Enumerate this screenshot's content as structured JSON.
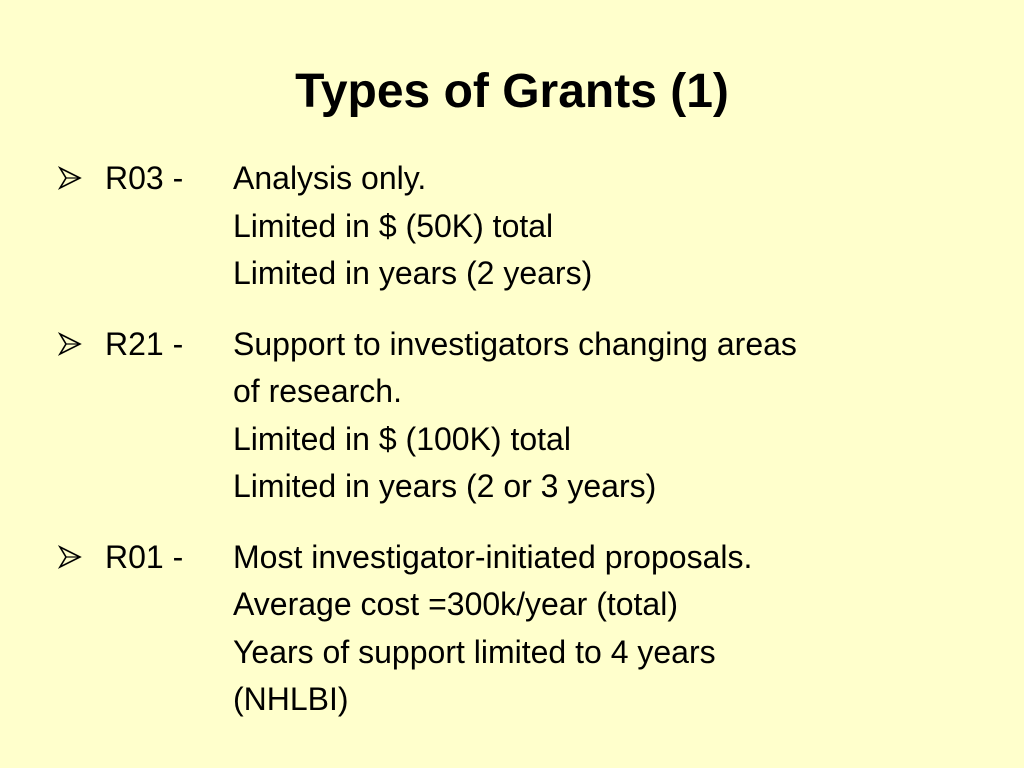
{
  "title": "Types of Grants (1)",
  "items": [
    {
      "code": "R03 -",
      "lines": [
        "Analysis only.",
        "Limited in $ (50K) total",
        "Limited in years (2 years)"
      ]
    },
    {
      "code": "R21 -",
      "lines": [
        "Support to investigators changing areas",
        "of research.",
        "Limited in $ (100K) total",
        "Limited in years (2 or 3 years)"
      ]
    },
    {
      "code": "R01 -",
      "lines": [
        "Most investigator-initiated proposals.",
        "Average cost =300k/year (total)",
        "Years of support limited to 4 years",
        "(NHLBI)"
      ]
    }
  ]
}
